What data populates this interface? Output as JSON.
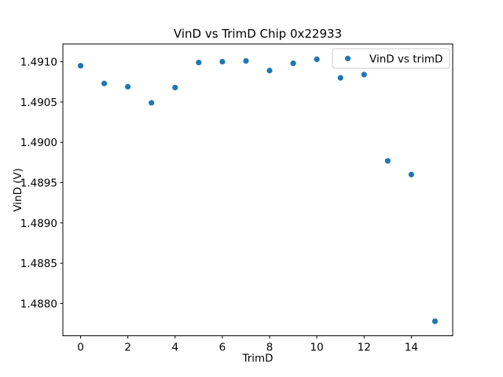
{
  "chart_data": {
    "type": "scatter",
    "title": "VinD vs TrimD Chip 0x22933",
    "xlabel": "TrimD",
    "ylabel": "VinD (V)",
    "series": [
      {
        "name": "VinD vs trimD",
        "x": [
          0,
          1,
          2,
          3,
          4,
          5,
          6,
          7,
          8,
          9,
          10,
          11,
          12,
          13,
          14,
          15
        ],
        "y": [
          1.49095,
          1.49073,
          1.49069,
          1.49049,
          1.49068,
          1.49099,
          1.491,
          1.49101,
          1.49089,
          1.49098,
          1.49103,
          1.4908,
          1.49084,
          1.48977,
          1.4896,
          1.48778
        ]
      }
    ],
    "xlim": [
      -0.75,
      15.75
    ],
    "ylim": [
      1.4876,
      1.49122
    ],
    "xticks": [
      {
        "value": 0,
        "label": "0"
      },
      {
        "value": 2,
        "label": "2"
      },
      {
        "value": 4,
        "label": "4"
      },
      {
        "value": 6,
        "label": "6"
      },
      {
        "value": 8,
        "label": "8"
      },
      {
        "value": 10,
        "label": "10"
      },
      {
        "value": 12,
        "label": "12"
      },
      {
        "value": 14,
        "label": "14"
      }
    ],
    "yticks": [
      {
        "value": 1.488,
        "label": "1.4880"
      },
      {
        "value": 1.4885,
        "label": "1.4885"
      },
      {
        "value": 1.489,
        "label": "1.4890"
      },
      {
        "value": 1.4895,
        "label": "1.4895"
      },
      {
        "value": 1.49,
        "label": "1.4900"
      },
      {
        "value": 1.4905,
        "label": "1.4905"
      },
      {
        "value": 1.491,
        "label": "1.4910"
      }
    ],
    "legend": {
      "label": "VinD vs trimD",
      "position": "upper right"
    },
    "marker_color": "#1f77b4",
    "spine_color": "#000000",
    "legend_border_color": "#cccccc",
    "background": "#ffffff",
    "grid": false
  }
}
